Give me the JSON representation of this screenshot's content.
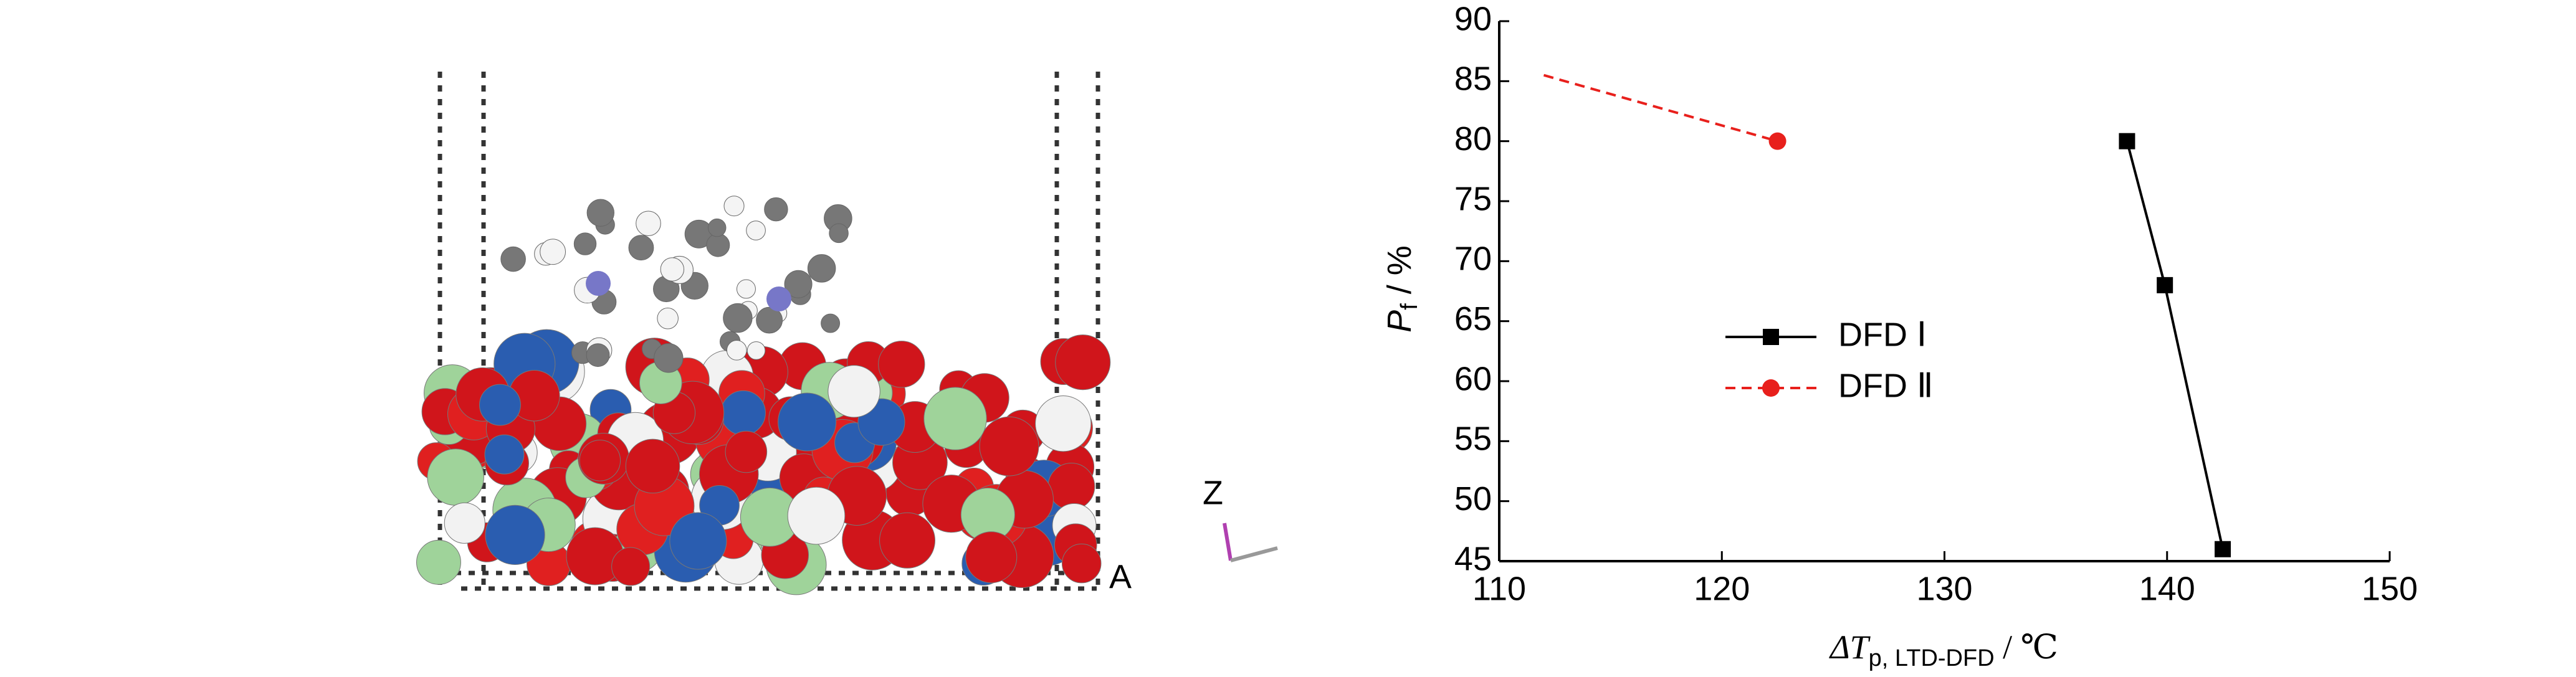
{
  "chart_data": {
    "type": "line",
    "x_label": {
      "symbol": "ΔT",
      "subscript": "p, LTD-DFD",
      "unit": " / ℃"
    },
    "y_label": {
      "symbol": "P",
      "subscript": "f",
      "unit": " / %"
    },
    "xlim": [
      110,
      150
    ],
    "xticks": [
      110,
      120,
      130,
      140,
      150
    ],
    "ylim": [
      45,
      90
    ],
    "yticks": [
      45,
      50,
      55,
      60,
      65,
      70,
      75,
      80,
      85,
      90
    ],
    "series": [
      {
        "name": "DFD Ⅰ",
        "color": "#000000",
        "dash": false,
        "marker": "square",
        "x": [
          138.2,
          139.9,
          142.5
        ],
        "values": [
          80,
          68,
          46
        ]
      },
      {
        "name": "DFD Ⅱ",
        "color": "#e8201c",
        "dash": true,
        "marker": "circle",
        "x": [
          112,
          122.5
        ],
        "values": [
          85.5,
          80
        ]
      }
    ]
  },
  "image_labels": [
    "Z",
    "A"
  ]
}
